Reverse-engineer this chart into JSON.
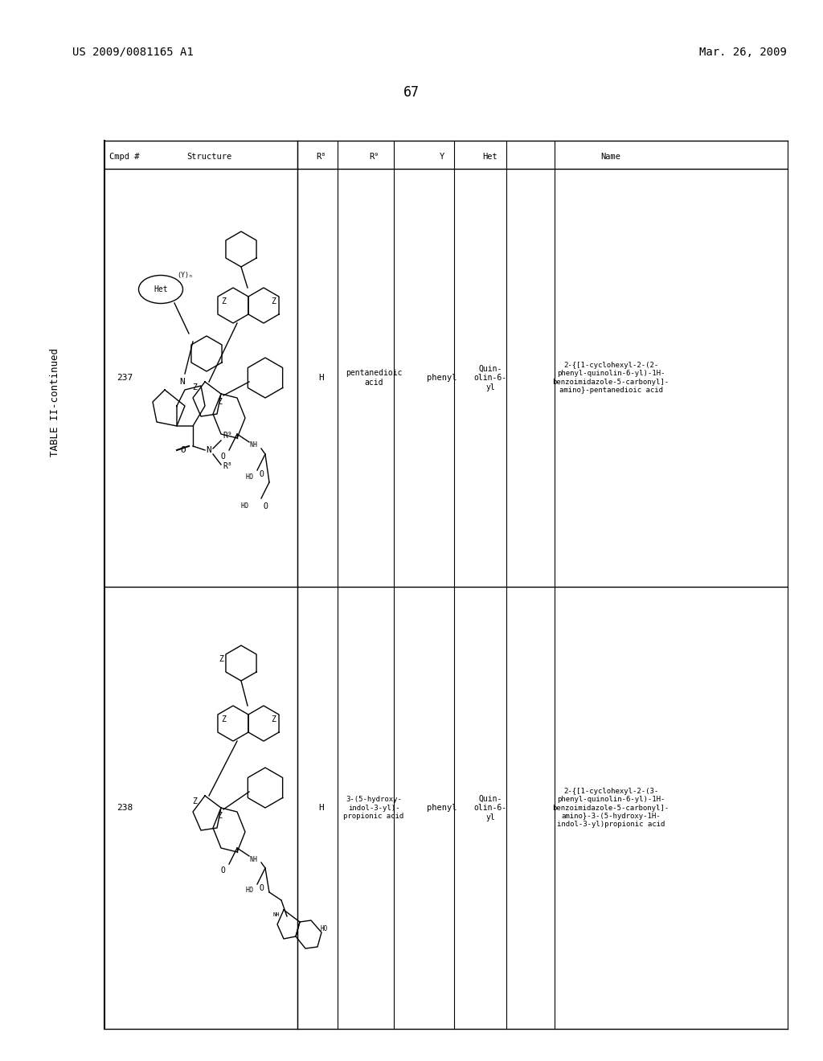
{
  "page_number": "67",
  "patent_number": "US 2009/0081165 A1",
  "date": "Mar. 26, 2009",
  "table_title": "TABLE II-continued",
  "background_color": "#ffffff",
  "columns": [
    "Cmpd #",
    "Structure",
    "R⁸",
    "R⁹",
    "Y",
    "Het",
    "Name"
  ],
  "rows": [
    {
      "cmpd": "237",
      "R8": "H",
      "R9": "pentanedioic\nacid",
      "Y": "phenyl",
      "Het": "Quin-\nolin-6-\nyl",
      "Name": "2-{[1-cyclohexyl-2-(2-\nphenyl-quinolin-6-yl)-1H-\nbenzoimidazole-5-carbonyl]-\namino}-pentanedioic acid"
    },
    {
      "cmpd": "238",
      "R8": "H",
      "R9": "3-(5-hydroxy-\nindol-3-yl)-\npropionic acid",
      "Y": "phenyl",
      "Het": "Quin-\nolin-6-\nyl",
      "Name": "2-{[1-cyclohexyl-2-(3-\nphenyl-quinolin-6-yl)-1H-\nbenzoimidazole-5-carbonyl]-\namino}-3-(5-hydroxy-1H-\nindol-3-yl)propionic acid"
    }
  ]
}
